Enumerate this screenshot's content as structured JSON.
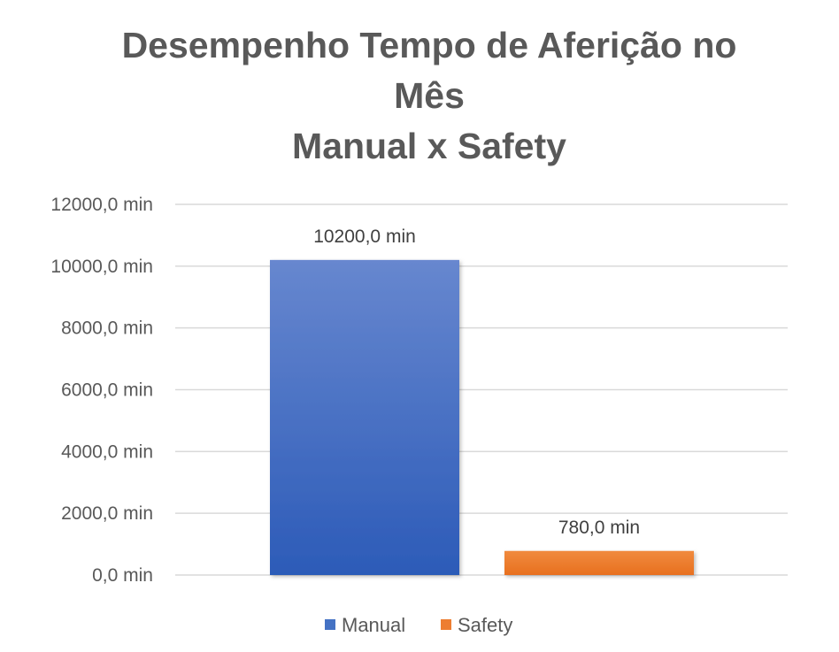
{
  "chart_data": {
    "type": "bar",
    "title": "Desempenho Tempo de Aferição no Mês Manual x Safety",
    "title_lines": [
      "Desempenho Tempo de Aferição no",
      "Mês",
      "Manual x Safety"
    ],
    "categories": [
      ""
    ],
    "series": [
      {
        "name": "Manual",
        "values": [
          10200
        ],
        "value_label": "10200,0 min",
        "color": "#4472C4"
      },
      {
        "name": "Safety",
        "values": [
          780
        ],
        "value_label": "780,0 min",
        "color": "#ED7D31"
      }
    ],
    "ylim": [
      0,
      12000
    ],
    "y_ticks": [
      {
        "value": 0,
        "label": "0,0 min"
      },
      {
        "value": 2000,
        "label": "2000,0 min"
      },
      {
        "value": 4000,
        "label": "4000,0 min"
      },
      {
        "value": 6000,
        "label": "6000,0 min"
      },
      {
        "value": 8000,
        "label": "8000,0 min"
      },
      {
        "value": 10000,
        "label": "10000,0 min"
      },
      {
        "value": 12000,
        "label": "12000,0 min"
      }
    ],
    "xlabel": "",
    "ylabel": "",
    "grid": true,
    "legend_position": "bottom"
  }
}
